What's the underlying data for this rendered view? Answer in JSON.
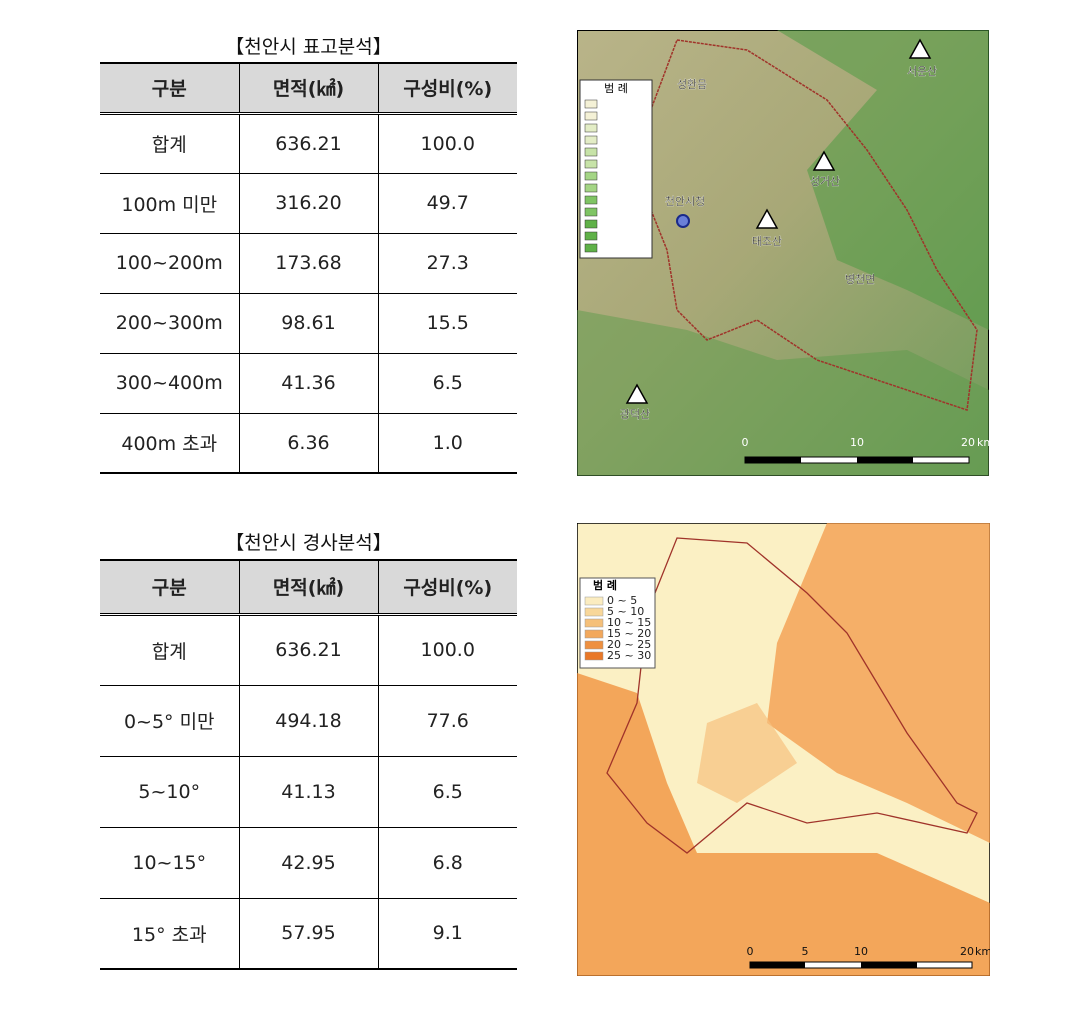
{
  "table1": {
    "title": "【천안시 표고분석】",
    "header": [
      "구분",
      "면적(㎢)",
      "구성비(%)"
    ],
    "rows": [
      [
        "합계",
        "636.21",
        "100.0"
      ],
      [
        "100m 미만",
        "316.20",
        "49.7"
      ],
      [
        "100~200m",
        "173.68",
        "27.3"
      ],
      [
        "200~300m",
        "98.61",
        "15.5"
      ],
      [
        "300~400m",
        "41.36",
        "6.5"
      ],
      [
        "400m 초과",
        "6.36",
        "1.0"
      ]
    ]
  },
  "table2": {
    "title": "【천안시 경사분석】",
    "header": [
      "구분",
      "면적(㎢)",
      "구성비(%)"
    ],
    "rows": [
      [
        "합계",
        "636.21",
        "100.0"
      ],
      [
        "0~5° 미만",
        "494.18",
        "77.6"
      ],
      [
        "5~10°",
        "41.13",
        "6.5"
      ],
      [
        "10~15°",
        "42.95",
        "6.8"
      ],
      [
        "15° 초과",
        "57.95",
        "9.1"
      ]
    ]
  },
  "map1": {
    "legend_title": "범 례",
    "labels": [
      "성환읍",
      "서운산",
      "성거산",
      "천안시청",
      "태조산",
      "병천면",
      "광덕산"
    ],
    "scale": [
      "0",
      "10",
      "20",
      "km"
    ]
  },
  "map2": {
    "legend_title": "범 례",
    "legend_items": [
      "0 ~ 5",
      "5 ~ 10",
      "10 ~ 15",
      "15 ~ 20",
      "20 ~ 25",
      "25 ~ 30"
    ],
    "scale": [
      "0",
      "5",
      "10",
      "20",
      "km"
    ]
  }
}
